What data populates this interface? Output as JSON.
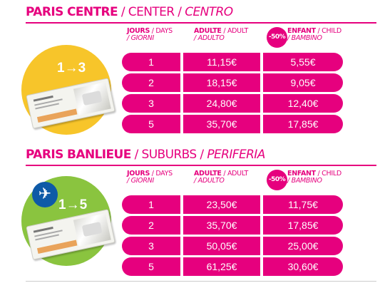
{
  "sections": [
    {
      "title_bold": "PARIS CENTRE",
      "title_regular": " / CENTER / ",
      "title_italic": "CENTRO",
      "zone_label": "1→3",
      "headers": {
        "days_bold": "JOURS",
        "days_rest": " / DAYS",
        "days_italic": "/ GIORNI",
        "adult_bold": "ADULTE",
        "adult_rest": " / ADULT",
        "adult_italic": "/ ADULTO",
        "discount_badge": "-50%",
        "child_bold": "ENFANT",
        "child_rest": " / CHILD",
        "child_italic": "/ BAMBINO"
      },
      "rows": [
        {
          "days": "1",
          "adult": "11,15€",
          "child": "5,55€"
        },
        {
          "days": "2",
          "adult": "18,15€",
          "child": "9,05€"
        },
        {
          "days": "3",
          "adult": "24,80€",
          "child": "12,40€"
        },
        {
          "days": "5",
          "adult": "35,70€",
          "child": "17,85€"
        }
      ]
    },
    {
      "title_bold": "PARIS BANLIEUE",
      "title_regular": " / SUBURBS / ",
      "title_italic": "PERIFERIA",
      "zone_label": "1→5",
      "plane_icon": "✈",
      "headers": {
        "days_bold": "JOURS",
        "days_rest": " / DAYS",
        "days_italic": "/ GIORNI",
        "adult_bold": "ADULTE",
        "adult_rest": " / ADULT",
        "adult_italic": "/ ADULTO",
        "discount_badge": "-50%",
        "child_bold": "ENFANT",
        "child_rest": " / CHILD",
        "child_italic": "/ BAMBINO"
      },
      "rows": [
        {
          "days": "1",
          "adult": "23,50€",
          "child": "11,75€"
        },
        {
          "days": "2",
          "adult": "35,70€",
          "child": "17,85€"
        },
        {
          "days": "3",
          "adult": "50,05€",
          "child": "25,00€"
        },
        {
          "days": "5",
          "adult": "61,25€",
          "child": "30,60€"
        }
      ]
    }
  ],
  "colors": {
    "accent": "#e6007e",
    "zone_yellow": "#f7c52a",
    "zone_green": "#8ac43f",
    "plane_blue": "#0e5aa7"
  },
  "icons": [
    "ticket-icon",
    "plane-icon"
  ]
}
